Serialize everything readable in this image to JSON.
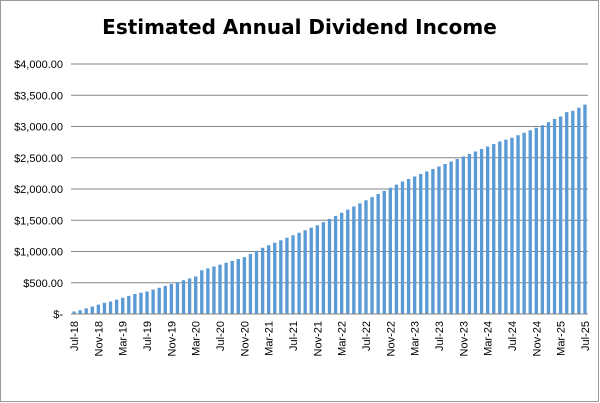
{
  "chart_data": {
    "type": "bar",
    "title": "Estimated Annual Dividend Income",
    "xlabel": "",
    "ylabel": "",
    "ylim": [
      0,
      4000
    ],
    "y_ticks": [
      "$-",
      "$500.00",
      "$1,000.00",
      "$1,500.00",
      "$2,000.00",
      "$2,500.00",
      "$3,000.00",
      "$3,500.00",
      "$4,000.00"
    ],
    "y_tick_values": [
      0,
      500,
      1000,
      1500,
      2000,
      2500,
      3000,
      3500,
      4000
    ],
    "x_tick_labels": [
      "Jul-18",
      "Nov-18",
      "Mar-19",
      "Jul-19",
      "Nov-19",
      "Mar-20",
      "Jul-20",
      "Nov-20",
      "Mar-21",
      "Jul-21",
      "Nov-21",
      "Mar-22",
      "Jul-22",
      "Nov-22",
      "Mar-23",
      "Jul-23",
      "Nov-23",
      "Mar-24",
      "Jul-24",
      "Nov-24",
      "Mar-25",
      "Jul-25"
    ],
    "grid": true,
    "legend": "none",
    "bar_color": "#5B9BD5",
    "categories": [
      "Jul-18",
      "Aug-18",
      "Sep-18",
      "Oct-18",
      "Nov-18",
      "Dec-18",
      "Jan-19",
      "Feb-19",
      "Mar-19",
      "Apr-19",
      "May-19",
      "Jun-19",
      "Jul-19",
      "Aug-19",
      "Sep-19",
      "Oct-19",
      "Nov-19",
      "Dec-19",
      "Jan-20",
      "Feb-20",
      "Mar-20",
      "Apr-20",
      "May-20",
      "Jun-20",
      "Jul-20",
      "Aug-20",
      "Sep-20",
      "Oct-20",
      "Nov-20",
      "Dec-20",
      "Jan-21",
      "Feb-21",
      "Mar-21",
      "Apr-21",
      "May-21",
      "Jun-21",
      "Jul-21",
      "Aug-21",
      "Sep-21",
      "Oct-21",
      "Nov-21",
      "Dec-21",
      "Jan-22",
      "Feb-22",
      "Mar-22",
      "Apr-22",
      "May-22",
      "Jun-22",
      "Jul-22",
      "Aug-22",
      "Sep-22",
      "Oct-22",
      "Nov-22",
      "Dec-22",
      "Jan-23",
      "Feb-23",
      "Mar-23",
      "Apr-23",
      "May-23",
      "Jun-23",
      "Jul-23",
      "Aug-23",
      "Sep-23",
      "Oct-23",
      "Nov-23",
      "Dec-23",
      "Jan-24",
      "Feb-24",
      "Mar-24",
      "Apr-24",
      "May-24",
      "Jun-24",
      "Jul-24",
      "Aug-24",
      "Sep-24",
      "Oct-24",
      "Nov-24",
      "Dec-24",
      "Jan-25",
      "Feb-25",
      "Mar-25",
      "Apr-25",
      "May-25",
      "Jun-25",
      "Jul-25"
    ],
    "values": [
      40,
      60,
      90,
      120,
      150,
      180,
      200,
      230,
      260,
      290,
      320,
      340,
      360,
      390,
      420,
      450,
      480,
      510,
      540,
      570,
      600,
      700,
      730,
      760,
      790,
      820,
      850,
      880,
      910,
      960,
      1010,
      1060,
      1100,
      1140,
      1180,
      1220,
      1260,
      1300,
      1340,
      1380,
      1420,
      1470,
      1520,
      1570,
      1620,
      1670,
      1720,
      1770,
      1820,
      1870,
      1920,
      1970,
      2020,
      2070,
      2120,
      2160,
      2200,
      2240,
      2280,
      2320,
      2360,
      2400,
      2440,
      2480,
      2520,
      2560,
      2600,
      2640,
      2680,
      2720,
      2760,
      2790,
      2820,
      2860,
      2900,
      2940,
      2980,
      3020,
      3070,
      3120,
      3160,
      3230,
      3250,
      3300,
      3350
    ]
  }
}
